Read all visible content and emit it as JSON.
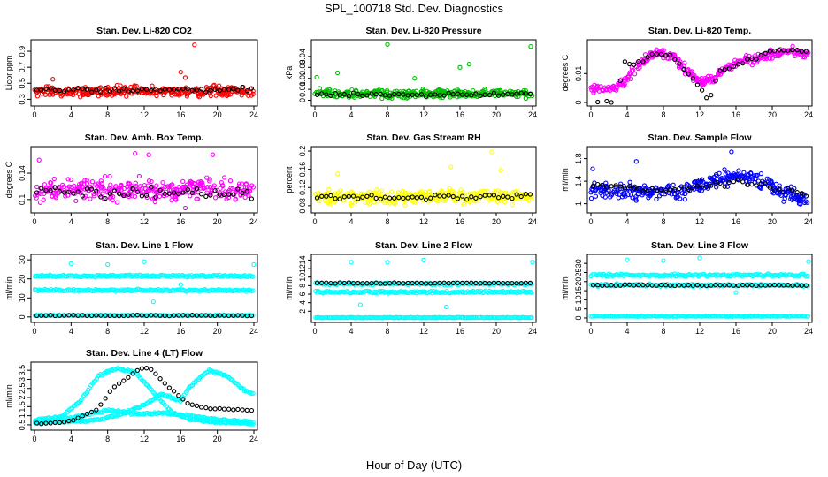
{
  "figure": {
    "title": "SPL_100718  Std. Dev. Diagnostics",
    "xlabel": "Hour of Day (UTC)"
  },
  "chart_data": [
    {
      "type": "scatter",
      "title": "Stan. Dev. Li-820 CO2",
      "ylabel": "Licor ppm",
      "color": "#ff0000",
      "x_ticks": [
        0,
        4,
        8,
        12,
        16,
        20,
        24
      ],
      "xlim": [
        0,
        24
      ],
      "y_ticks": [
        0.3,
        0.5,
        0.7,
        0.9
      ],
      "ylim": [
        0.26,
        1.0
      ],
      "base_level": 0.4,
      "spread": 0.05,
      "black_level": 0.42,
      "outliers": [
        [
          17.5,
          0.98
        ],
        [
          16.0,
          0.64
        ],
        [
          16.5,
          0.57
        ],
        [
          2.0,
          0.55
        ]
      ]
    },
    {
      "type": "scatter",
      "title": "Stan. Dev. Li-820 Pressure",
      "ylabel": "kPa",
      "color": "#00c000",
      "x_ticks": [
        0,
        4,
        8,
        12,
        16,
        20,
        24
      ],
      "xlim": [
        0,
        24
      ],
      "y_ticks": [
        0.0,
        0.01,
        0.02,
        0.03,
        0.04
      ],
      "ylim": [
        -0.002,
        0.052
      ],
      "base_level": 0.006,
      "spread": 0.003,
      "black_level": 0.005,
      "outliers": [
        [
          8.0,
          0.051
        ],
        [
          23.8,
          0.049
        ],
        [
          16.0,
          0.03
        ],
        [
          17.0,
          0.033
        ],
        [
          2.5,
          0.025
        ],
        [
          0.2,
          0.021
        ],
        [
          11.0,
          0.02
        ]
      ]
    },
    {
      "type": "scatter",
      "title": "Stan. Dev. Li-820 Temp.",
      "ylabel": "degrees C",
      "color": "#ff00ff",
      "x_ticks": [
        0,
        4,
        8,
        12,
        16,
        20,
        24
      ],
      "xlim": [
        0,
        24
      ],
      "y_ticks": [
        0.0,
        0.01
      ],
      "ylim": [
        0.0,
        0.0205
      ],
      "profile": [
        [
          0,
          0.005
        ],
        [
          3,
          0.005
        ],
        [
          4,
          0.008
        ],
        [
          5,
          0.012
        ],
        [
          7,
          0.0175
        ],
        [
          9,
          0.016
        ],
        [
          10,
          0.013
        ],
        [
          12,
          0.007
        ],
        [
          13.5,
          0.008
        ],
        [
          15,
          0.012
        ],
        [
          17,
          0.0145
        ],
        [
          20,
          0.0165
        ],
        [
          22,
          0.018
        ],
        [
          24,
          0.0165
        ]
      ],
      "spread": 0.0015,
      "black_profile": [
        [
          0,
          0.0
        ],
        [
          3,
          0.0
        ],
        [
          3.5,
          0.014
        ],
        [
          5,
          0.013
        ],
        [
          7,
          0.017
        ],
        [
          9,
          0.016
        ],
        [
          12,
          0.006
        ],
        [
          13,
          0.0
        ],
        [
          14,
          0.01
        ],
        [
          17,
          0.014
        ],
        [
          20,
          0.018
        ],
        [
          24,
          0.0175
        ]
      ]
    },
    {
      "type": "scatter",
      "title": "Stan. Dev. Amb. Box Temp.",
      "ylabel": "degrees C",
      "color": "#ff00ff",
      "x_ticks": [
        0,
        4,
        8,
        12,
        16,
        20,
        24
      ],
      "xlim": [
        0,
        24
      ],
      "y_ticks": [
        0.1,
        0.14
      ],
      "ylim": [
        0.085,
        0.175
      ],
      "base_level": 0.115,
      "spread": 0.013,
      "black_level": 0.11,
      "outliers": [
        [
          11.0,
          0.17
        ],
        [
          12.5,
          0.168
        ],
        [
          19.5,
          0.168
        ],
        [
          0.5,
          0.16
        ],
        [
          16.5,
          0.087
        ]
      ]
    },
    {
      "type": "scatter",
      "title": "Stan. Dev. Gas Stream RH",
      "ylabel": "percent",
      "color": "#ffff00",
      "x_ticks": [
        0,
        4,
        8,
        12,
        16,
        20,
        24
      ],
      "xlim": [
        0,
        24
      ],
      "y_ticks": [
        0.08,
        0.12,
        0.16,
        0.2
      ],
      "ylim": [
        0.072,
        0.202
      ],
      "base_level": 0.1,
      "spread": 0.012,
      "black_level": 0.1,
      "outliers": [
        [
          19.5,
          0.198
        ],
        [
          15.0,
          0.165
        ],
        [
          20.5,
          0.158
        ],
        [
          2.5,
          0.15
        ]
      ]
    },
    {
      "type": "scatter",
      "title": "Stan. Dev. Sample Flow",
      "ylabel": "ml/min",
      "color": "#0000ff",
      "x_ticks": [
        0,
        4,
        8,
        12,
        16,
        20,
        24
      ],
      "xlim": [
        0,
        24
      ],
      "y_ticks": [
        1.0,
        1.4,
        1.8
      ],
      "ylim": [
        0.9,
        1.95
      ],
      "profile": [
        [
          0,
          1.25
        ],
        [
          6,
          1.2
        ],
        [
          10,
          1.22
        ],
        [
          14,
          1.45
        ],
        [
          16,
          1.5
        ],
        [
          19,
          1.4
        ],
        [
          21,
          1.2
        ],
        [
          24,
          1.05
        ]
      ],
      "spread": 0.12,
      "black_profile": [
        [
          0,
          1.35
        ],
        [
          6,
          1.25
        ],
        [
          12,
          1.28
        ],
        [
          16,
          1.4
        ],
        [
          20,
          1.3
        ],
        [
          24,
          1.15
        ]
      ],
      "outliers": [
        [
          15.5,
          1.92
        ],
        [
          0.2,
          1.62
        ],
        [
          5.0,
          1.75
        ]
      ]
    },
    {
      "type": "scatter",
      "title": "Stan. Dev. Line 1 Flow",
      "ylabel": "ml/min",
      "color": "#00ffff",
      "x_ticks": [
        0,
        4,
        8,
        12,
        16,
        20,
        24
      ],
      "xlim": [
        0,
        24
      ],
      "y_ticks": [
        0,
        10,
        20,
        30
      ],
      "ylim": [
        -1,
        31
      ],
      "bands": [
        21.5,
        14.0,
        0.8
      ],
      "spread": 0.8,
      "black_level": 0.8,
      "outliers": [
        [
          4.0,
          28.0
        ],
        [
          8.0,
          27.5
        ],
        [
          12.0,
          29.0
        ],
        [
          24.0,
          27.5
        ],
        [
          13.0,
          8.0
        ],
        [
          16.0,
          17.0
        ]
      ]
    },
    {
      "type": "scatter",
      "title": "Stan. Dev. Line 2 Flow",
      "ylabel": "ml/min",
      "color": "#00ffff",
      "x_ticks": [
        0,
        4,
        8,
        12,
        16,
        20,
        24
      ],
      "xlim": [
        0,
        24
      ],
      "y_ticks": [
        2,
        4,
        6,
        8,
        10,
        12,
        14
      ],
      "ylim": [
        0.2,
        14.5
      ],
      "bands": [
        8.4,
        6.5,
        0.5
      ],
      "spread": 0.35,
      "black_level": 8.6,
      "outliers": [
        [
          4.0,
          13.5
        ],
        [
          8.0,
          13.5
        ],
        [
          12.0,
          14.0
        ],
        [
          24.0,
          13.5
        ],
        [
          14.5,
          3.0
        ],
        [
          5.0,
          3.5
        ]
      ]
    },
    {
      "type": "scatter",
      "title": "Stan. Dev. Line 3 Flow",
      "ylabel": "ml/min",
      "color": "#00ffff",
      "x_ticks": [
        0,
        4,
        8,
        12,
        16,
        20,
        24
      ],
      "xlim": [
        0,
        24
      ],
      "y_ticks": [
        0,
        5,
        10,
        15,
        20,
        25,
        30
      ],
      "ylim": [
        -0.5,
        33
      ],
      "bands": [
        23.5,
        18.0,
        1.0
      ],
      "spread": 1.0,
      "black_level": 18.0,
      "outliers": [
        [
          4.0,
          32.0
        ],
        [
          8.0,
          31.5
        ],
        [
          12.0,
          33.0
        ],
        [
          24.0,
          31.0
        ],
        [
          16.0,
          14.0
        ]
      ]
    },
    {
      "type": "scatter",
      "title": "Stan. Dev. Line 4 (LT) Flow",
      "ylabel": "ml/min",
      "color": "#00ffff",
      "x_ticks": [
        0,
        4,
        8,
        12,
        16,
        20,
        24
      ],
      "xlim": [
        0,
        24
      ],
      "y_ticks": [
        0.5,
        1.0,
        1.5,
        2.0,
        2.5,
        3.0,
        3.5
      ],
      "ylim": [
        0.4,
        3.75
      ],
      "curves": [
        [
          [
            0,
            0.75
          ],
          [
            3,
            0.95
          ],
          [
            5,
            1.8
          ],
          [
            7,
            3.2
          ],
          [
            9,
            3.6
          ],
          [
            11,
            3.4
          ],
          [
            13,
            2.3
          ],
          [
            15,
            1.2
          ],
          [
            17,
            0.8
          ],
          [
            20,
            0.65
          ],
          [
            24,
            0.55
          ]
        ],
        [
          [
            0,
            0.65
          ],
          [
            6,
            0.7
          ],
          [
            9,
            1.0
          ],
          [
            12,
            1.6
          ],
          [
            14,
            2.2
          ],
          [
            16,
            1.8
          ],
          [
            17,
            2.6
          ],
          [
            19,
            3.5
          ],
          [
            21,
            3.2
          ],
          [
            23,
            2.4
          ],
          [
            24,
            2.2
          ]
        ],
        [
          [
            0,
            0.6
          ],
          [
            4,
            0.9
          ],
          [
            8,
            1.3
          ],
          [
            11,
            1.1
          ],
          [
            14,
            1.15
          ],
          [
            17,
            1.0
          ],
          [
            20,
            0.8
          ],
          [
            24,
            0.65
          ]
        ]
      ],
      "spread": 0.08,
      "black_profile": [
        [
          0,
          0.55
        ],
        [
          4,
          0.7
        ],
        [
          7,
          1.4
        ],
        [
          8.5,
          2.5
        ],
        [
          10,
          3.0
        ],
        [
          11.5,
          3.6
        ],
        [
          12.5,
          3.65
        ],
        [
          14,
          2.9
        ],
        [
          15.5,
          2.2
        ],
        [
          17,
          1.6
        ],
        [
          19,
          1.4
        ],
        [
          24,
          1.3
        ]
      ]
    }
  ]
}
